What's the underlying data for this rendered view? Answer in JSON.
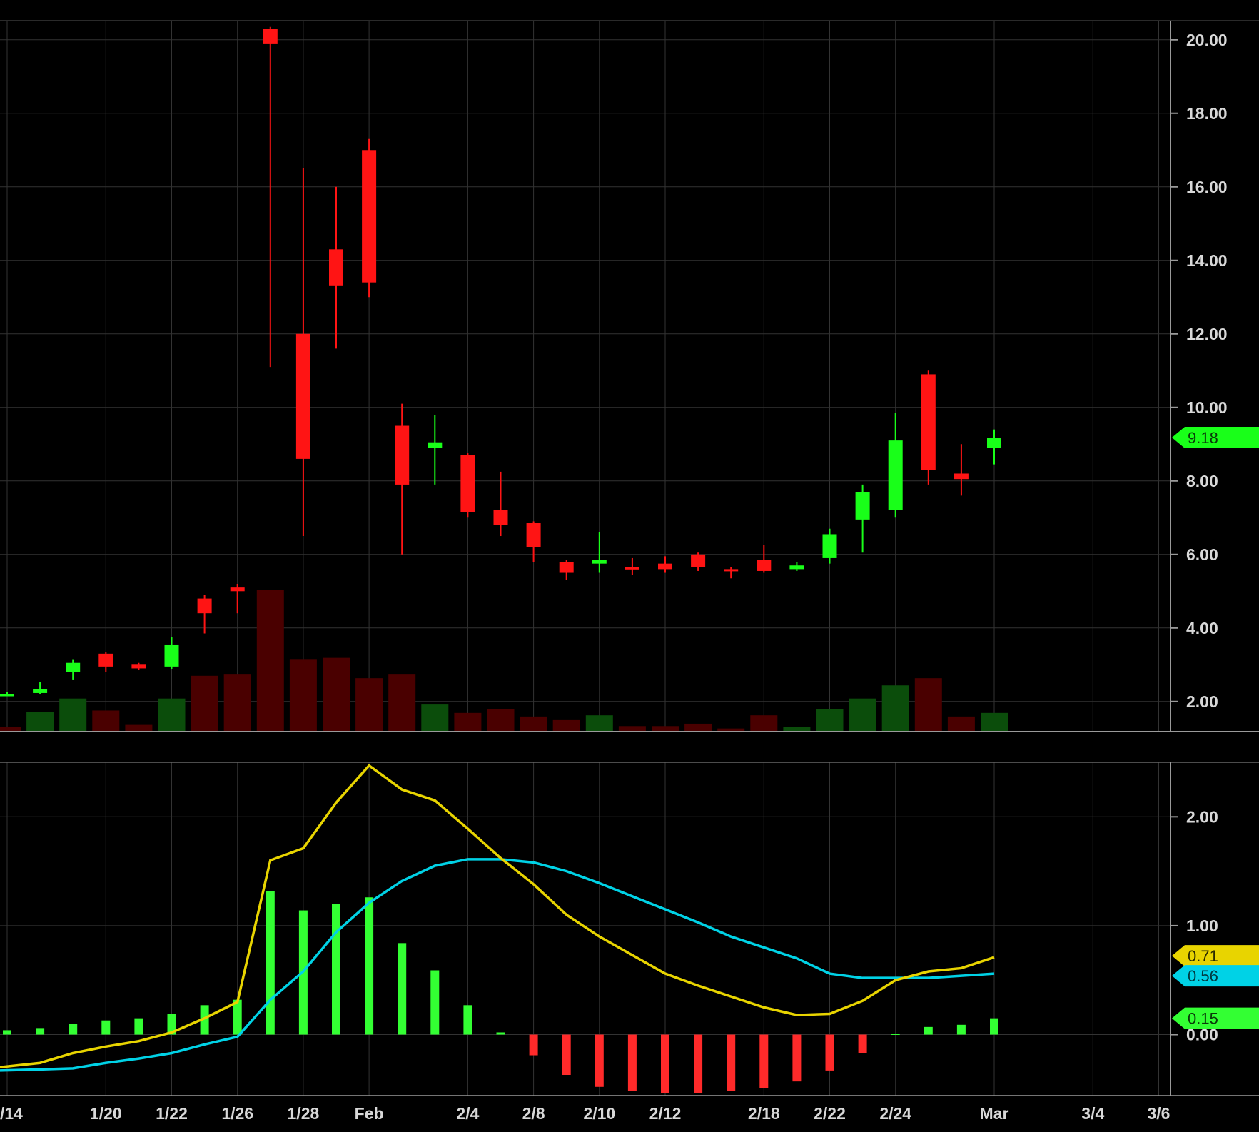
{
  "colors": {
    "background": "#000000",
    "grid": "#333333",
    "separator": "#9a9a9a",
    "up": "#19ff19",
    "down": "#ff1414",
    "volume_up": "#0b4d0b",
    "volume_down": "#4a0000",
    "macd_line": "#e8d400",
    "signal_line": "#00d2e6",
    "histogram_up": "#33ff33",
    "histogram_down": "#ff2a2a",
    "axis_text": "#d8d8d8"
  },
  "x_axis": {
    "labels": [
      "/14",
      "1/20",
      "1/22",
      "1/26",
      "1/28",
      "Feb",
      "2/4",
      "2/8",
      "2/10",
      "2/12",
      "2/18",
      "2/22",
      "2/24",
      "Mar",
      "3/4",
      "3/6"
    ],
    "label_slots": [
      0,
      3,
      5,
      7,
      9,
      11,
      14,
      16,
      18,
      20,
      23,
      25,
      27,
      30,
      33,
      35
    ]
  },
  "chart_data": [
    {
      "type": "candlestick",
      "title": "",
      "ylim": [
        1.2,
        20.5
      ],
      "yticks": [
        "2.00",
        "4.00",
        "6.00",
        "8.00",
        "10.00",
        "12.00",
        "14.00",
        "16.00",
        "18.00",
        "20.00"
      ],
      "last_price_label": "9.18",
      "candles": [
        {
          "slot": 0,
          "open": 2.2,
          "high": 2.25,
          "low": 2.15,
          "close": 2.2
        },
        {
          "slot": 1,
          "open": 2.23,
          "high": 2.52,
          "low": 2.19,
          "close": 2.33
        },
        {
          "slot": 2,
          "open": 2.8,
          "high": 3.15,
          "low": 2.58,
          "close": 3.05
        },
        {
          "slot": 3,
          "open": 3.3,
          "high": 3.35,
          "low": 2.8,
          "close": 2.95
        },
        {
          "slot": 4,
          "open": 3.0,
          "high": 3.05,
          "low": 2.85,
          "close": 2.9
        },
        {
          "slot": 5,
          "open": 2.95,
          "high": 3.75,
          "low": 2.88,
          "close": 3.55
        },
        {
          "slot": 6,
          "open": 4.8,
          "high": 4.9,
          "low": 3.85,
          "close": 4.4
        },
        {
          "slot": 7,
          "open": 5.1,
          "high": 5.2,
          "low": 4.4,
          "close": 5.0
        },
        {
          "slot": 8,
          "open": 20.3,
          "high": 20.35,
          "low": 11.1,
          "close": 19.9
        },
        {
          "slot": 9,
          "open": 12.0,
          "high": 16.5,
          "low": 6.5,
          "close": 8.6
        },
        {
          "slot": 10,
          "open": 14.3,
          "high": 16.0,
          "low": 11.6,
          "close": 13.3
        },
        {
          "slot": 11,
          "open": 17.0,
          "high": 17.3,
          "low": 13.0,
          "close": 13.4
        },
        {
          "slot": 12,
          "open": 9.5,
          "high": 10.1,
          "low": 6.0,
          "close": 7.9
        },
        {
          "slot": 13,
          "open": 8.9,
          "high": 9.8,
          "low": 7.9,
          "close": 9.05
        },
        {
          "slot": 14,
          "open": 8.7,
          "high": 8.75,
          "low": 7.0,
          "close": 7.15
        },
        {
          "slot": 15,
          "open": 7.2,
          "high": 8.25,
          "low": 6.5,
          "close": 6.8
        },
        {
          "slot": 16,
          "open": 6.85,
          "high": 6.9,
          "low": 5.8,
          "close": 6.2
        },
        {
          "slot": 17,
          "open": 5.8,
          "high": 5.85,
          "low": 5.3,
          "close": 5.5
        },
        {
          "slot": 18,
          "open": 5.75,
          "high": 6.6,
          "low": 5.5,
          "close": 5.85
        },
        {
          "slot": 19,
          "open": 5.65,
          "high": 5.9,
          "low": 5.45,
          "close": 5.6
        },
        {
          "slot": 20,
          "open": 5.75,
          "high": 5.95,
          "low": 5.5,
          "close": 5.6
        },
        {
          "slot": 21,
          "open": 6.0,
          "high": 6.05,
          "low": 5.55,
          "close": 5.65
        },
        {
          "slot": 22,
          "open": 5.6,
          "high": 5.65,
          "low": 5.35,
          "close": 5.55
        },
        {
          "slot": 23,
          "open": 5.85,
          "high": 6.25,
          "low": 5.5,
          "close": 5.55
        },
        {
          "slot": 24,
          "open": 5.6,
          "high": 5.8,
          "low": 5.55,
          "close": 5.7
        },
        {
          "slot": 25,
          "open": 5.9,
          "high": 6.7,
          "low": 5.75,
          "close": 6.55
        },
        {
          "slot": 26,
          "open": 6.95,
          "high": 7.9,
          "low": 6.05,
          "close": 7.7
        },
        {
          "slot": 27,
          "open": 7.2,
          "high": 9.85,
          "low": 7.0,
          "close": 9.1
        },
        {
          "slot": 28,
          "open": 10.9,
          "high": 11.0,
          "low": 7.9,
          "close": 8.3
        },
        {
          "slot": 29,
          "open": 8.2,
          "high": 9.0,
          "low": 7.6,
          "close": 8.05
        },
        {
          "slot": 30,
          "open": 8.9,
          "high": 9.4,
          "low": 8.45,
          "close": 9.18
        }
      ]
    },
    {
      "type": "bar",
      "title": "",
      "scale_note": "relative volume (unlabeled axis)",
      "values": [
        0.3,
        1.6,
        2.7,
        1.7,
        0.5,
        2.7,
        4.6,
        4.7,
        11.8,
        6.0,
        6.1,
        4.4,
        4.7,
        2.2,
        1.5,
        1.8,
        1.2,
        0.9,
        1.3,
        0.4,
        0.4,
        0.6,
        0.2,
        1.3,
        0.3,
        1.8,
        2.7,
        3.8,
        4.4,
        1.2,
        1.5
      ],
      "directions": [
        "down",
        "up",
        "up",
        "down",
        "down",
        "up",
        "down",
        "down",
        "down",
        "down",
        "down",
        "down",
        "down",
        "up",
        "down",
        "down",
        "down",
        "down",
        "up",
        "down",
        "down",
        "down",
        "down",
        "down",
        "up",
        "up",
        "up",
        "up",
        "down",
        "down",
        "up"
      ]
    },
    {
      "type": "line",
      "title": "",
      "ylim": [
        -0.56,
        2.5
      ],
      "yticks": [
        "0.00",
        "1.00",
        "2.00"
      ],
      "series": [
        {
          "key": "macd",
          "color": "#e8d400",
          "values": [
            -0.3,
            -0.26,
            -0.17,
            -0.11,
            -0.06,
            0.02,
            0.15,
            0.3,
            1.6,
            1.71,
            2.13,
            2.47,
            2.25,
            2.15,
            1.89,
            1.62,
            1.38,
            1.1,
            0.9,
            0.73,
            0.56,
            0.45,
            0.35,
            0.25,
            0.18,
            0.19,
            0.31,
            0.5,
            0.58,
            0.61,
            0.71
          ]
        },
        {
          "key": "signal",
          "color": "#00d2e6",
          "values": [
            -0.33,
            -0.32,
            -0.31,
            -0.26,
            -0.22,
            -0.17,
            -0.09,
            -0.02,
            0.32,
            0.58,
            0.94,
            1.21,
            1.41,
            1.55,
            1.61,
            1.61,
            1.58,
            1.5,
            1.39,
            1.27,
            1.15,
            1.03,
            0.9,
            0.8,
            0.7,
            0.56,
            0.52,
            0.52,
            0.52,
            0.54,
            0.56
          ]
        }
      ],
      "histogram": [
        0.04,
        0.06,
        0.1,
        0.13,
        0.15,
        0.19,
        0.27,
        0.32,
        1.32,
        1.14,
        1.2,
        1.26,
        0.84,
        0.59,
        0.27,
        0.02,
        -0.19,
        -0.37,
        -0.48,
        -0.52,
        -0.54,
        -0.54,
        -0.52,
        -0.49,
        -0.43,
        -0.33,
        -0.17,
        0.01,
        0.07,
        0.09,
        0.15
      ],
      "value_labels": {
        "macd": "0.71",
        "signal": "0.56",
        "histogram": "0.15"
      }
    }
  ]
}
